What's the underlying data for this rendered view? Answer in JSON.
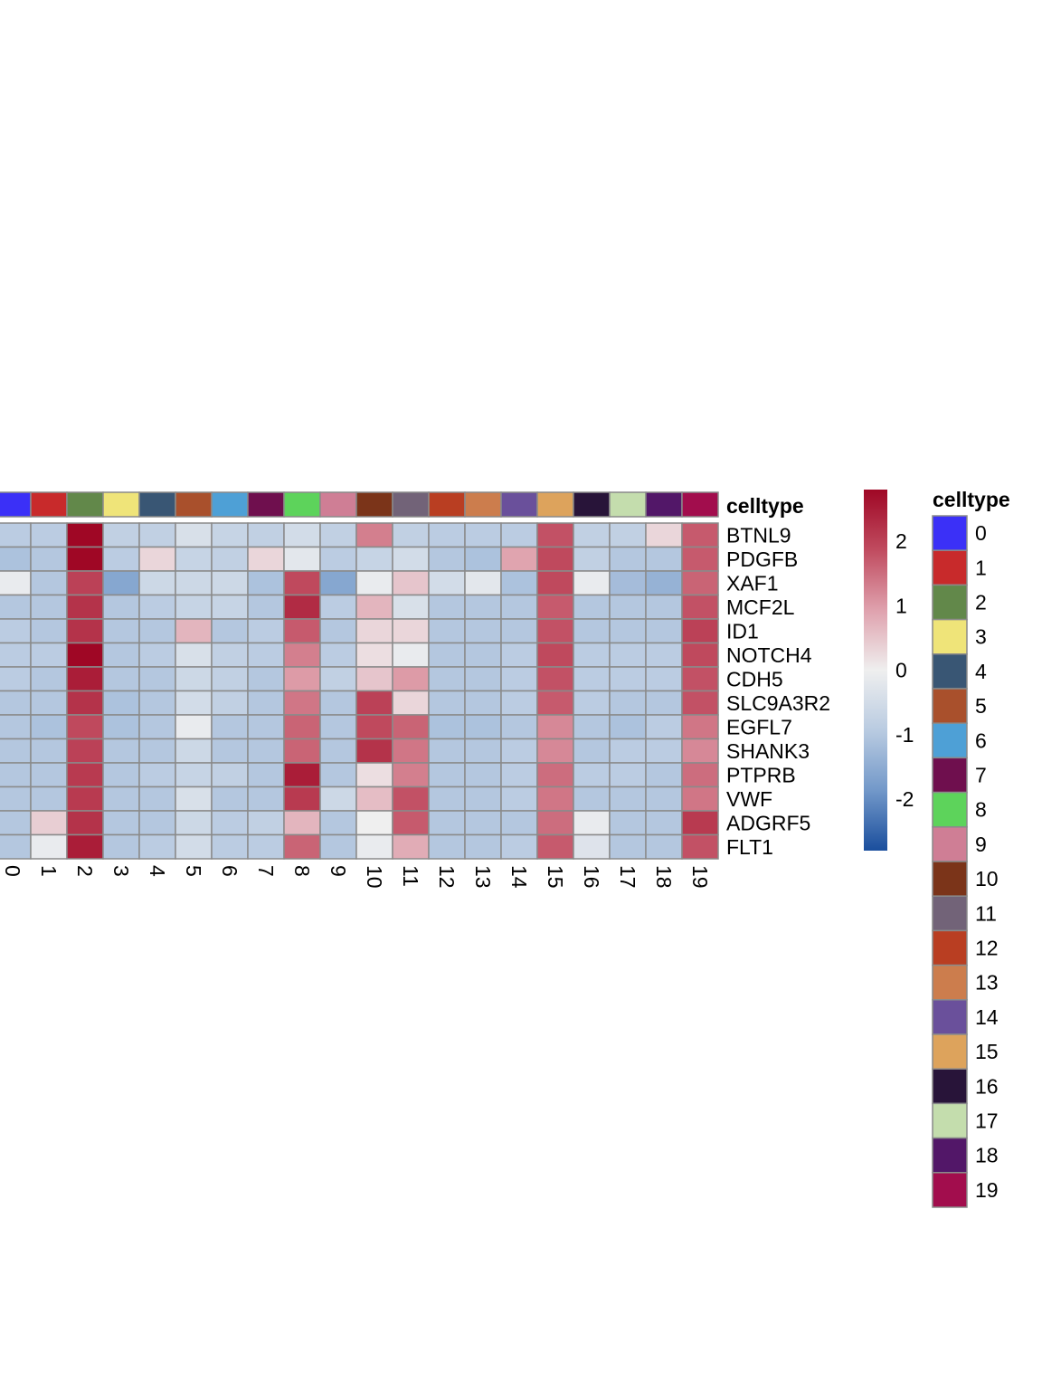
{
  "chart_data": {
    "type": "heatmap",
    "annotation_title": "celltype",
    "legend_title": "celltype",
    "columns": [
      "0",
      "1",
      "2",
      "3",
      "4",
      "5",
      "6",
      "7",
      "8",
      "9",
      "10",
      "11",
      "12",
      "13",
      "14",
      "15",
      "16",
      "17",
      "18",
      "19"
    ],
    "rows": [
      "BTNL9",
      "PDGFB",
      "XAF1",
      "MCF2L",
      "ID1",
      "NOTCH4",
      "CDH5",
      "SLC9A3R2",
      "EGFL7",
      "SHANK3",
      "PTPRB",
      "VWF",
      "ADGRF5",
      "FLT1"
    ],
    "celltype_colors": [
      "#3b30f7",
      "#c82a2b",
      "#62884a",
      "#efe479",
      "#395674",
      "#a9502c",
      "#4ea0d6",
      "#6f0f4e",
      "#5dd35b",
      "#cf7e95",
      "#7b3419",
      "#726378",
      "#b93e22",
      "#cc7d4d",
      "#6a509b",
      "#dda35c",
      "#281439",
      "#c4ddad",
      "#521768",
      "#a20d4d"
    ],
    "color_scale": {
      "min": -2.8,
      "max": 2.8,
      "stops": [
        "#1a4e9d",
        "#7298c9",
        "#b9cbe1",
        "#efefef",
        "#dfa1ad",
        "#c04b5f",
        "#9f0725"
      ],
      "ticks": [
        2,
        1,
        0,
        -1,
        -2
      ]
    },
    "values": [
      [
        -0.9,
        -0.9,
        2.8,
        -0.8,
        -0.8,
        -0.4,
        -0.7,
        -0.8,
        -0.5,
        -0.8,
        1.3,
        -0.8,
        -0.9,
        -0.9,
        -0.9,
        1.8,
        -0.8,
        -0.8,
        0.3,
        1.7
      ],
      [
        -1.1,
        -1.0,
        2.8,
        -0.9,
        0.3,
        -0.7,
        -0.8,
        0.3,
        -0.2,
        -0.9,
        -0.7,
        -0.5,
        -1.0,
        -1.1,
        0.9,
        1.9,
        -0.8,
        -1.0,
        -1.0,
        1.7
      ],
      [
        -0.1,
        -1.0,
        2.0,
        -1.6,
        -0.6,
        -0.6,
        -0.6,
        -1.1,
        1.9,
        -1.6,
        -0.1,
        0.5,
        -0.5,
        -0.2,
        -1.1,
        1.9,
        -0.1,
        -1.2,
        -1.4,
        1.6
      ],
      [
        -1.0,
        -1.0,
        2.2,
        -1.0,
        -0.9,
        -0.7,
        -0.7,
        -1.0,
        2.3,
        -0.9,
        0.7,
        -0.4,
        -1.0,
        -1.0,
        -1.0,
        1.7,
        -1.0,
        -1.0,
        -1.0,
        1.8
      ],
      [
        -0.9,
        -1.0,
        2.2,
        -1.0,
        -1.0,
        0.7,
        -1.0,
        -0.9,
        1.7,
        -1.0,
        0.3,
        0.3,
        -1.0,
        -1.0,
        -1.0,
        1.8,
        -1.0,
        -1.0,
        -1.0,
        2.0
      ],
      [
        -0.9,
        -0.9,
        2.8,
        -1.0,
        -0.9,
        -0.4,
        -0.8,
        -0.9,
        1.3,
        -0.9,
        0.2,
        -0.1,
        -1.0,
        -1.0,
        -0.9,
        1.9,
        -0.9,
        -0.9,
        -0.9,
        1.9
      ],
      [
        -0.9,
        -1.0,
        2.5,
        -1.0,
        -1.0,
        -0.6,
        -0.8,
        -1.0,
        1.0,
        -0.8,
        0.5,
        1.0,
        -1.0,
        -1.0,
        -0.9,
        1.8,
        -0.9,
        -0.9,
        -0.9,
        1.8
      ],
      [
        -1.0,
        -1.0,
        2.2,
        -1.1,
        -1.0,
        -0.5,
        -0.8,
        -1.0,
        1.4,
        -1.0,
        2.0,
        0.3,
        -1.0,
        -1.0,
        -0.9,
        1.7,
        -0.9,
        -1.0,
        -1.0,
        1.8
      ],
      [
        -1.0,
        -1.1,
        1.9,
        -1.1,
        -1.0,
        -0.1,
        -1.0,
        -1.0,
        1.6,
        -1.0,
        1.9,
        1.6,
        -1.1,
        -1.1,
        -1.0,
        1.2,
        -1.0,
        -1.1,
        -0.9,
        1.4
      ],
      [
        -1.0,
        -1.0,
        2.0,
        -1.0,
        -1.0,
        -0.6,
        -1.0,
        -1.0,
        1.6,
        -1.0,
        2.2,
        1.4,
        -1.0,
        -1.0,
        -0.9,
        1.2,
        -1.0,
        -0.9,
        -0.9,
        1.2
      ],
      [
        -1.0,
        -1.0,
        2.1,
        -1.0,
        -0.9,
        -0.7,
        -0.8,
        -1.0,
        2.5,
        -1.0,
        0.2,
        1.3,
        -1.0,
        -1.0,
        -0.9,
        1.5,
        -0.9,
        -0.9,
        -1.0,
        1.5
      ],
      [
        -1.0,
        -1.0,
        2.1,
        -1.0,
        -1.0,
        -0.4,
        -1.0,
        -1.0,
        2.1,
        -0.6,
        0.6,
        1.8,
        -1.0,
        -1.0,
        -0.9,
        1.4,
        -1.0,
        -1.0,
        -1.0,
        1.4
      ],
      [
        -1.0,
        0.4,
        2.2,
        -1.0,
        -1.0,
        -0.6,
        -0.9,
        -0.8,
        0.7,
        -1.0,
        0.0,
        1.7,
        -1.0,
        -1.0,
        -1.0,
        1.5,
        -0.1,
        -1.0,
        -1.0,
        2.1
      ],
      [
        -1.0,
        -0.1,
        2.5,
        -1.0,
        -0.9,
        -0.5,
        -0.9,
        -0.9,
        1.6,
        -1.0,
        -0.1,
        0.8,
        -1.0,
        -1.0,
        -0.9,
        1.7,
        -0.3,
        -1.0,
        -1.0,
        1.8
      ]
    ]
  }
}
